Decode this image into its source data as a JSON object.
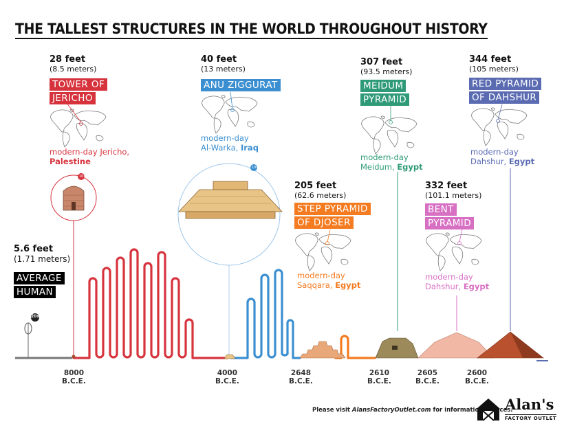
{
  "title": "THE TALLEST STRUCTURES IN THE WORLD THROUGHOUT HISTORY",
  "colors": {
    "red": "#d7333d",
    "blue": "#3b8fd1",
    "orange": "#f47b20",
    "green": "#2e9a78",
    "pink": "#d76fc3",
    "navy": "#5a6bb2",
    "black": "#000000"
  },
  "human": {
    "feet": "5.6 feet",
    "meters": "(1.71 meters)",
    "name_line1": "AVERAGE",
    "name_line2": "HUMAN",
    "scale_badge": "20x"
  },
  "jericho": {
    "feet": "28 feet",
    "meters": "(8.5 meters)",
    "name_line1": "TOWER OF",
    "name_line2": "JERICHO",
    "loc_line1": "modern-day Jericho,",
    "loc_country": "Palestine",
    "scale_badge": "10x"
  },
  "ziggurat": {
    "feet": "40 feet",
    "meters": "(13 meters)",
    "name_line1": "ANU ZIGGURAT",
    "loc_line1": "modern-day",
    "loc_city": "Al-Warka,",
    "loc_country": "Iraq",
    "scale_badge": "10x"
  },
  "djoser": {
    "feet": "205 feet",
    "meters": "(62.6 meters)",
    "name_line1": "STEP PYRAMID",
    "name_line2": "OF DJOSER",
    "loc_line1": "modern-day",
    "loc_city": "Saqqara,",
    "loc_country": "Egypt"
  },
  "meidum": {
    "feet": "307 feet",
    "meters": "(93.5 meters)",
    "name_line1": "MEIDUM",
    "name_line2": "PYRAMID",
    "loc_line1": "modern-day",
    "loc_city": "Meidum,",
    "loc_country": "Egypt"
  },
  "bent": {
    "feet": "332 feet",
    "meters": "(101.1 meters)",
    "name_line1": "BENT",
    "name_line2": "PYRAMID",
    "loc_line1": "modern-day",
    "loc_city": "Dahshur,",
    "loc_country": "Egypt"
  },
  "red_pyramid": {
    "feet": "344 feet",
    "meters": "(105 meters)",
    "name_line1": "RED PYRAMID",
    "name_line2": "OF DAHSHUR",
    "loc_line1": "modern-day",
    "loc_city": "Dahshur,",
    "loc_country": "Egypt"
  },
  "timeline": [
    {
      "year": "8000",
      "era": "B.C.E."
    },
    {
      "year": "4000",
      "era": "B.C.E."
    },
    {
      "year": "2648",
      "era": "B.C.E."
    },
    {
      "year": "2610",
      "era": "B.C.E."
    },
    {
      "year": "2605",
      "era": "B.C.E."
    },
    {
      "year": "2600",
      "era": "B.C.E."
    }
  ],
  "footer": {
    "prefix": "Please visit ",
    "site": "AlansFactoryOutlet.com",
    "suffix": " for information sources."
  },
  "logo": {
    "name": "Alan's",
    "sub": "FACTORY OUTLET"
  }
}
